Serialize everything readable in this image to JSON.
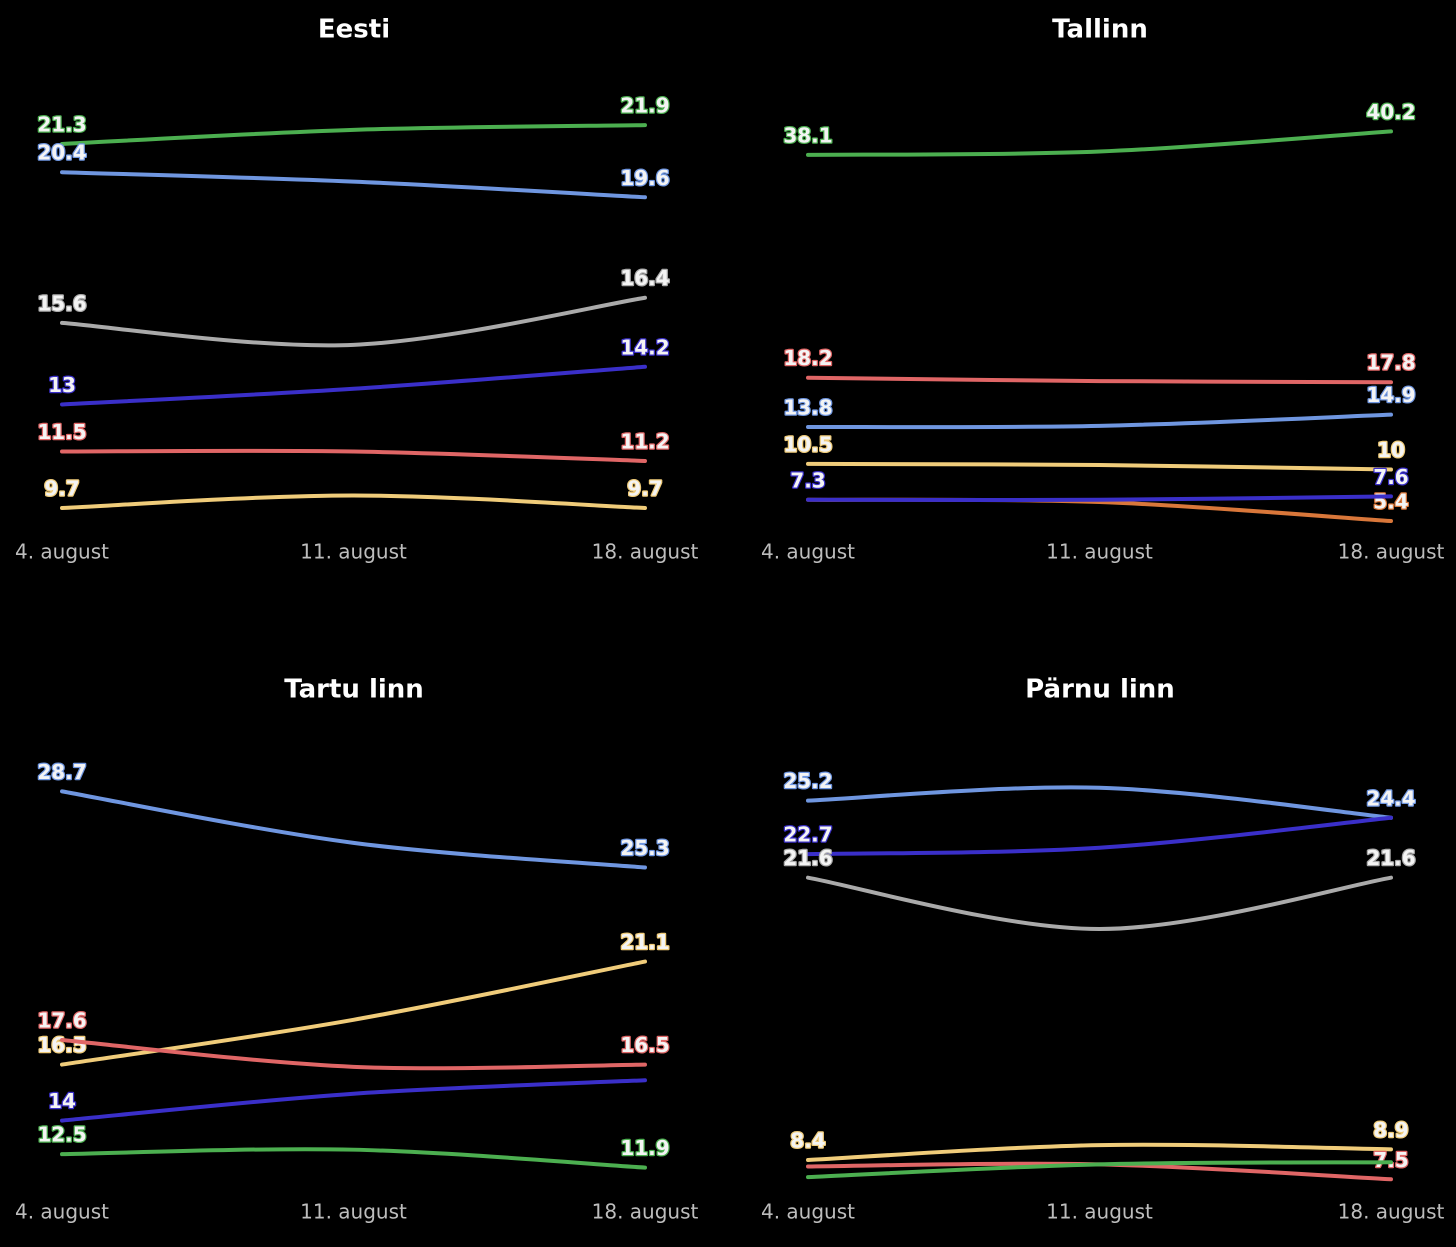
{
  "chart_data": [
    {
      "type": "line",
      "title": "Eesti",
      "categories": [
        "4. august",
        "11. august",
        "18. august"
      ],
      "ylim": [
        9.0,
        22.7
      ],
      "series": [
        {
          "color": "#4caf50",
          "values": [
            21.3,
            21.75,
            21.9
          ],
          "value_labels": [
            "21.3",
            null,
            "21.9"
          ]
        },
        {
          "color": "#6f96e0",
          "values": [
            20.4,
            20.1,
            19.6
          ],
          "value_labels": [
            "20.4",
            null,
            "19.6"
          ]
        },
        {
          "color": "#aaaaaa",
          "values": [
            15.6,
            14.9,
            16.4
          ],
          "value_labels": [
            "15.6",
            null,
            "16.4"
          ]
        },
        {
          "color": "#3a2fc9",
          "values": [
            13,
            13.5,
            14.2
          ],
          "value_labels": [
            "13",
            null,
            "14.2"
          ]
        },
        {
          "color": "#e06666",
          "values": [
            11.5,
            11.5,
            11.2
          ],
          "value_labels": [
            "11.5",
            null,
            "11.2"
          ]
        },
        {
          "color": "#f0cc7a",
          "values": [
            9.7,
            10.1,
            9.7
          ],
          "value_labels": [
            "9.7",
            null,
            "9.7"
          ]
        }
      ]
    },
    {
      "type": "line",
      "title": "Tallinn",
      "categories": [
        "4. august",
        "11. august",
        "18. august"
      ],
      "ylim": [
        4.6,
        43.0
      ],
      "series": [
        {
          "color": "#4caf50",
          "values": [
            38.1,
            38.4,
            40.2
          ],
          "value_labels": [
            "38.1",
            null,
            "40.2"
          ]
        },
        {
          "color": "#e06666",
          "values": [
            18.2,
            17.9,
            17.8
          ],
          "value_labels": [
            "18.2",
            null,
            "17.8"
          ]
        },
        {
          "color": "#6f96e0",
          "values": [
            13.8,
            13.9,
            14.9
          ],
          "value_labels": [
            "13.8",
            null,
            "14.9"
          ]
        },
        {
          "color": "#f0cc7a",
          "values": [
            10.5,
            10.4,
            10
          ],
          "value_labels": [
            "10.5",
            null,
            "10"
          ]
        },
        {
          "color": "#d9773a",
          "values": [
            7.3,
            7.1,
            5.4
          ],
          "value_labels": [
            null,
            null,
            "5.4"
          ]
        },
        {
          "color": "#3a2fc9",
          "values": [
            7.3,
            7.3,
            7.6
          ],
          "value_labels": [
            "7.3",
            null,
            "7.6"
          ]
        }
      ]
    },
    {
      "type": "line",
      "title": "Tartu linn",
      "categories": [
        "4. august",
        "11. august",
        "18. august"
      ],
      "ylim": [
        10.9,
        30.1
      ],
      "series": [
        {
          "color": "#6f96e0",
          "values": [
            28.7,
            26.4,
            25.3
          ],
          "value_labels": [
            "28.7",
            null,
            "25.3"
          ]
        },
        {
          "color": "#f0cc7a",
          "values": [
            16.5,
            18.5,
            21.1
          ],
          "value_labels": [
            "16.5",
            null,
            "21.1"
          ]
        },
        {
          "color": "#e06666",
          "values": [
            17.6,
            16.4,
            16.5
          ],
          "value_labels": [
            "17.6",
            null,
            "16.5"
          ]
        },
        {
          "color": "#3a2fc9",
          "values": [
            14,
            15.2,
            15.8
          ],
          "value_labels": [
            "14",
            null,
            null
          ]
        },
        {
          "color": "#4caf50",
          "values": [
            12.5,
            12.7,
            11.9
          ],
          "value_labels": [
            "12.5",
            null,
            "11.9"
          ]
        }
      ]
    },
    {
      "type": "line",
      "title": "Pärnu linn",
      "categories": [
        "4. august",
        "11. august",
        "18. august"
      ],
      "ylim": [
        7.0,
        27.1
      ],
      "series": [
        {
          "color": "#6f96e0",
          "values": [
            25.2,
            25.8,
            24.4
          ],
          "value_labels": [
            "25.2",
            null,
            "24.4"
          ]
        },
        {
          "color": "#3a2fc9",
          "values": [
            22.7,
            23.0,
            24.4
          ],
          "value_labels": [
            "22.7",
            null,
            null
          ]
        },
        {
          "color": "#aaaaaa",
          "values": [
            21.6,
            19.2,
            21.6
          ],
          "value_labels": [
            "21.6",
            null,
            "21.6"
          ]
        },
        {
          "color": "#f0cc7a",
          "values": [
            8.4,
            9.1,
            8.9
          ],
          "value_labels": [
            "8.4",
            null,
            "8.9"
          ]
        },
        {
          "color": "#e06666",
          "values": [
            8.1,
            8.2,
            7.5
          ],
          "value_labels": [
            null,
            null,
            "7.5"
          ]
        },
        {
          "color": "#4caf50",
          "values": [
            7.6,
            8.2,
            8.3
          ],
          "value_labels": [
            null,
            null,
            null
          ]
        }
      ]
    }
  ]
}
